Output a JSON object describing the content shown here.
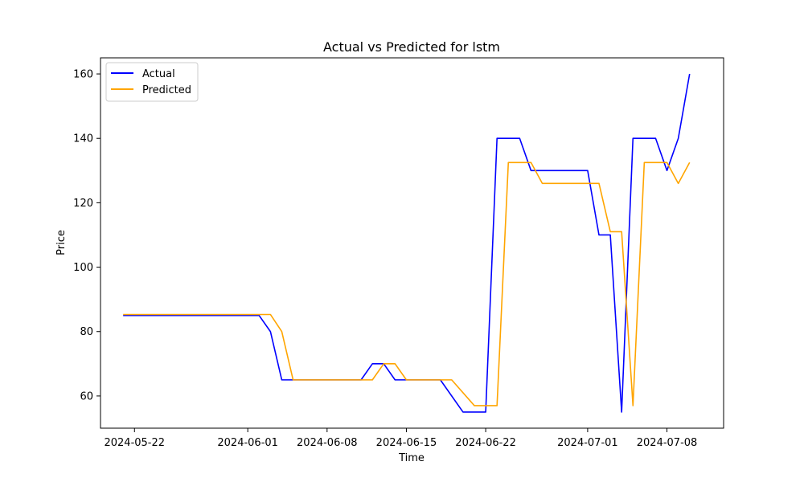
{
  "chart_data": {
    "type": "line",
    "title": "Actual vs Predicted for lstm",
    "xlabel": "Time",
    "ylabel": "Price",
    "xlim": [
      "2024-05-19",
      "2024-07-13"
    ],
    "ylim": [
      50,
      165
    ],
    "x_ticks": [
      "2024-05-22",
      "2024-06-01",
      "2024-06-08",
      "2024-06-15",
      "2024-06-22",
      "2024-07-01",
      "2024-07-08"
    ],
    "y_ticks": [
      60,
      80,
      100,
      120,
      140,
      160
    ],
    "grid": false,
    "legend": "top-left",
    "series": [
      {
        "name": "Actual",
        "color": "#0000ff",
        "points": [
          [
            "2024-05-21",
            85
          ],
          [
            "2024-06-02",
            85
          ],
          [
            "2024-06-03",
            80
          ],
          [
            "2024-06-04",
            65
          ],
          [
            "2024-06-05",
            65
          ],
          [
            "2024-06-11",
            65
          ],
          [
            "2024-06-12",
            70
          ],
          [
            "2024-06-13",
            70
          ],
          [
            "2024-06-14",
            65
          ],
          [
            "2024-06-18",
            65
          ],
          [
            "2024-06-20",
            55
          ],
          [
            "2024-06-22",
            55
          ],
          [
            "2024-06-23",
            140
          ],
          [
            "2024-06-25",
            140
          ],
          [
            "2024-06-26",
            130
          ],
          [
            "2024-07-01",
            130
          ],
          [
            "2024-07-02",
            110
          ],
          [
            "2024-07-03",
            110
          ],
          [
            "2024-07-04",
            55
          ],
          [
            "2024-07-05",
            140
          ],
          [
            "2024-07-07",
            140
          ],
          [
            "2024-07-08",
            130
          ],
          [
            "2024-07-09",
            140
          ],
          [
            "2024-07-10",
            160
          ]
        ]
      },
      {
        "name": "Predicted",
        "color": "#ffa500",
        "points": [
          [
            "2024-05-21",
            85.3
          ],
          [
            "2024-06-03",
            85.3
          ],
          [
            "2024-06-04",
            80
          ],
          [
            "2024-06-05",
            65
          ],
          [
            "2024-06-12",
            65
          ],
          [
            "2024-06-13",
            70
          ],
          [
            "2024-06-14",
            70
          ],
          [
            "2024-06-15",
            65
          ],
          [
            "2024-06-19",
            65
          ],
          [
            "2024-06-21",
            57
          ],
          [
            "2024-06-23",
            57
          ],
          [
            "2024-06-24",
            132.5
          ],
          [
            "2024-06-26",
            132.5
          ],
          [
            "2024-06-27",
            126
          ],
          [
            "2024-07-02",
            126
          ],
          [
            "2024-07-03",
            111
          ],
          [
            "2024-07-04",
            111
          ],
          [
            "2024-07-05",
            57
          ],
          [
            "2024-07-06",
            132.5
          ],
          [
            "2024-07-08",
            132.5
          ],
          [
            "2024-07-09",
            126
          ],
          [
            "2024-07-10",
            132.5
          ]
        ]
      }
    ]
  }
}
